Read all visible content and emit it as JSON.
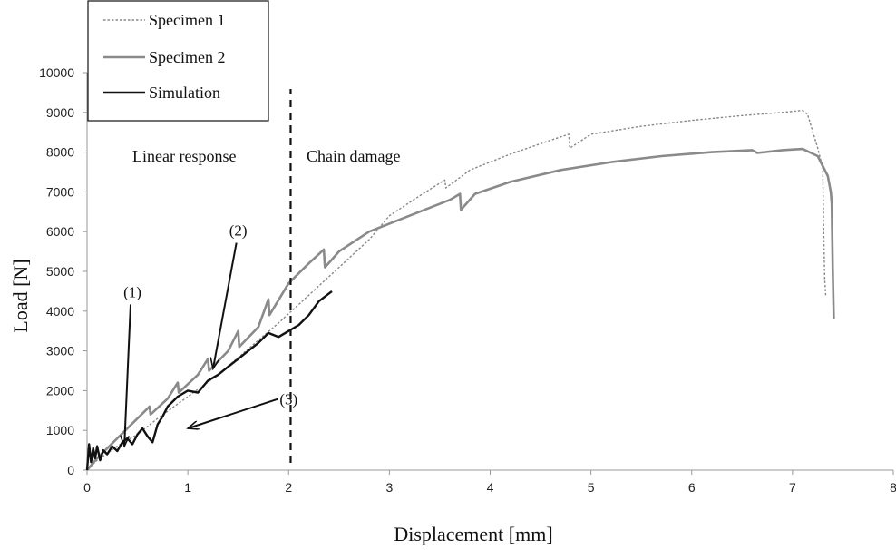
{
  "chart_data": {
    "type": "line",
    "xlabel": "Displacement [mm]",
    "ylabel": "Load [N]",
    "xlim": [
      0,
      8
    ],
    "ylim": [
      0,
      10000
    ],
    "x_ticks": [
      "0",
      "1",
      "2",
      "3",
      "4",
      "5",
      "6",
      "7",
      "8"
    ],
    "y_ticks": [
      "0",
      "1000",
      "2000",
      "3000",
      "4000",
      "5000",
      "6000",
      "7000",
      "8000",
      "9000",
      "10000"
    ],
    "grid": false,
    "legend_position": "top-left",
    "series": [
      {
        "name": "Specimen 1",
        "color": "#888888",
        "style": "dotted",
        "x": [
          0.0,
          0.1,
          0.3,
          0.5,
          0.7,
          1.0,
          1.3,
          1.6,
          1.9,
          2.2,
          2.5,
          2.8,
          3.0,
          3.3,
          3.55,
          3.56,
          3.8,
          4.2,
          4.6,
          4.78,
          4.79,
          5.0,
          5.5,
          6.0,
          6.5,
          6.9,
          7.1,
          7.15,
          7.25,
          7.3,
          7.31,
          7.32,
          7.33
        ],
        "y": [
          0,
          250,
          600,
          900,
          1300,
          1850,
          2400,
          3050,
          3700,
          4400,
          5100,
          5800,
          6400,
          6900,
          7300,
          7100,
          7550,
          7950,
          8300,
          8450,
          8100,
          8450,
          8650,
          8800,
          8920,
          9000,
          9050,
          8950,
          8100,
          7600,
          6000,
          4800,
          4400
        ]
      },
      {
        "name": "Specimen 2",
        "color": "#8a8a8a",
        "style": "solid",
        "x": [
          0.0,
          0.1,
          0.3,
          0.5,
          0.62,
          0.63,
          0.8,
          0.9,
          0.91,
          1.1,
          1.2,
          1.21,
          1.4,
          1.5,
          1.51,
          1.7,
          1.8,
          1.81,
          2.0,
          2.2,
          2.35,
          2.36,
          2.5,
          2.8,
          3.2,
          3.6,
          3.7,
          3.71,
          3.85,
          4.2,
          4.7,
          5.2,
          5.7,
          6.2,
          6.6,
          6.65,
          6.9,
          7.1,
          7.25,
          7.35,
          7.38,
          7.39,
          7.4,
          7.41
        ],
        "y": [
          0,
          300,
          800,
          1300,
          1600,
          1400,
          1800,
          2200,
          1950,
          2400,
          2800,
          2500,
          3000,
          3500,
          3100,
          3600,
          4300,
          3900,
          4700,
          5200,
          5550,
          5100,
          5500,
          6000,
          6400,
          6800,
          6950,
          6550,
          6950,
          7250,
          7550,
          7750,
          7900,
          8000,
          8050,
          7980,
          8050,
          8080,
          7900,
          7400,
          7000,
          6700,
          5000,
          3800
        ]
      },
      {
        "name": "Simulation",
        "color": "#111111",
        "style": "solid",
        "x": [
          0.0,
          0.02,
          0.04,
          0.06,
          0.08,
          0.1,
          0.13,
          0.16,
          0.2,
          0.25,
          0.3,
          0.35,
          0.4,
          0.45,
          0.5,
          0.55,
          0.6,
          0.65,
          0.7,
          0.75,
          0.8,
          0.9,
          1.0,
          1.1,
          1.2,
          1.3,
          1.4,
          1.5,
          1.6,
          1.7,
          1.8,
          1.9,
          2.0,
          2.1,
          2.2,
          2.3,
          2.43
        ],
        "y": [
          0,
          650,
          200,
          550,
          300,
          600,
          250,
          500,
          400,
          600,
          480,
          700,
          800,
          650,
          900,
          1050,
          850,
          700,
          1150,
          1350,
          1600,
          1850,
          2000,
          1950,
          2250,
          2400,
          2600,
          2800,
          3000,
          3200,
          3450,
          3350,
          3500,
          3650,
          3900,
          4250,
          4500
        ]
      }
    ],
    "region_labels": [
      "Linear response",
      "Chain damage"
    ],
    "divider_x": 2.02,
    "annotations": [
      {
        "label": "(1)",
        "text_at": [
          0.45,
          4350
        ],
        "arrow_to": [
          0.37,
          600
        ]
      },
      {
        "label": "(2)",
        "text_at": [
          1.5,
          5900
        ],
        "arrow_to": [
          1.25,
          2550
        ]
      },
      {
        "label": "(3)",
        "text_at": [
          2.0,
          1650
        ],
        "arrow_to": [
          1.0,
          1050
        ]
      }
    ]
  }
}
